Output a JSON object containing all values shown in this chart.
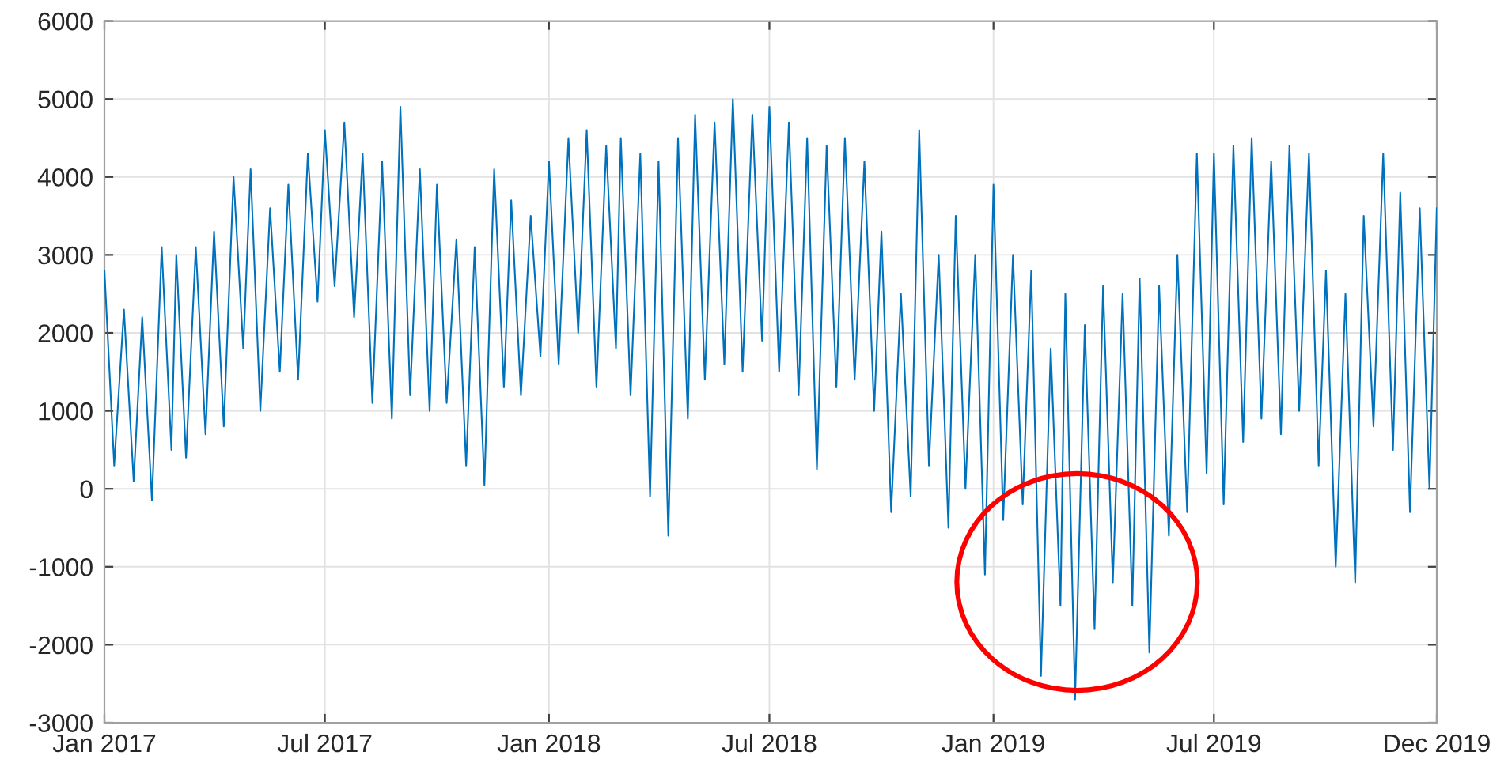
{
  "chart_data": {
    "type": "line",
    "x": [
      "2017-01-01",
      "2017-01-09",
      "2017-01-17",
      "2017-01-25",
      "2017-02-01",
      "2017-02-09",
      "2017-02-17",
      "2017-02-25",
      "2017-03-01",
      "2017-03-09",
      "2017-03-17",
      "2017-03-25",
      "2017-04-01",
      "2017-04-09",
      "2017-04-17",
      "2017-04-25",
      "2017-05-01",
      "2017-05-09",
      "2017-05-17",
      "2017-05-25",
      "2017-06-01",
      "2017-06-09",
      "2017-06-17",
      "2017-06-25",
      "2017-07-01",
      "2017-07-09",
      "2017-07-17",
      "2017-07-25",
      "2017-08-01",
      "2017-08-09",
      "2017-08-17",
      "2017-08-25",
      "2017-09-01",
      "2017-09-09",
      "2017-09-17",
      "2017-09-25",
      "2017-10-01",
      "2017-10-09",
      "2017-10-17",
      "2017-10-25",
      "2017-11-01",
      "2017-11-09",
      "2017-11-17",
      "2017-11-25",
      "2017-12-01",
      "2017-12-09",
      "2017-12-17",
      "2017-12-25",
      "2018-01-01",
      "2018-01-09",
      "2018-01-17",
      "2018-01-25",
      "2018-02-01",
      "2018-02-09",
      "2018-02-17",
      "2018-02-25",
      "2018-03-01",
      "2018-03-09",
      "2018-03-17",
      "2018-03-25",
      "2018-04-01",
      "2018-04-09",
      "2018-04-17",
      "2018-04-25",
      "2018-05-01",
      "2018-05-09",
      "2018-05-17",
      "2018-05-25",
      "2018-06-01",
      "2018-06-09",
      "2018-06-17",
      "2018-06-25",
      "2018-07-01",
      "2018-07-09",
      "2018-07-17",
      "2018-07-25",
      "2018-08-01",
      "2018-08-09",
      "2018-08-17",
      "2018-08-25",
      "2018-09-01",
      "2018-09-09",
      "2018-09-17",
      "2018-09-25",
      "2018-10-01",
      "2018-10-09",
      "2018-10-17",
      "2018-10-25",
      "2018-11-01",
      "2018-11-09",
      "2018-11-17",
      "2018-11-25",
      "2018-12-01",
      "2018-12-09",
      "2018-12-17",
      "2018-12-25",
      "2019-01-01",
      "2019-01-09",
      "2019-01-17",
      "2019-01-25",
      "2019-02-01",
      "2019-02-09",
      "2019-02-17",
      "2019-02-25",
      "2019-03-01",
      "2019-03-09",
      "2019-03-17",
      "2019-03-25",
      "2019-04-01",
      "2019-04-09",
      "2019-04-17",
      "2019-04-25",
      "2019-05-01",
      "2019-05-09",
      "2019-05-17",
      "2019-05-25",
      "2019-06-01",
      "2019-06-09",
      "2019-06-17",
      "2019-06-25",
      "2019-07-01",
      "2019-07-09",
      "2019-07-17",
      "2019-07-25",
      "2019-08-01",
      "2019-08-09",
      "2019-08-17",
      "2019-08-25",
      "2019-09-01",
      "2019-09-09",
      "2019-09-17",
      "2019-09-25",
      "2019-10-01",
      "2019-10-09",
      "2019-10-17",
      "2019-10-25",
      "2019-11-01",
      "2019-11-09",
      "2019-11-17",
      "2019-11-25",
      "2019-12-01",
      "2019-12-09",
      "2019-12-17",
      "2019-12-25",
      "2019-12-31"
    ],
    "series": [
      {
        "color": "#0072bd",
        "values": [
          2800,
          300,
          2300,
          100,
          2200,
          -150,
          3100,
          500,
          3000,
          400,
          3100,
          700,
          3300,
          800,
          4000,
          1800,
          4100,
          1000,
          3600,
          1500,
          3900,
          1400,
          4300,
          2400,
          4600,
          2600,
          4700,
          2200,
          4300,
          1100,
          4200,
          900,
          4900,
          1200,
          4100,
          1000,
          3900,
          1100,
          3200,
          300,
          3100,
          50,
          4100,
          1300,
          3700,
          1200,
          3500,
          1700,
          4200,
          1600,
          4500,
          2000,
          4600,
          1300,
          4400,
          1800,
          4500,
          1200,
          4300,
          -100,
          4200,
          -600,
          4500,
          900,
          4800,
          1400,
          4700,
          1600,
          5000,
          1500,
          4800,
          1900,
          4900,
          1500,
          4700,
          1200,
          4500,
          250,
          4400,
          1300,
          4500,
          1400,
          4200,
          1000,
          3300,
          -300,
          2500,
          -100,
          4600,
          300,
          3000,
          -500,
          3500,
          0,
          3000,
          -1100,
          3900,
          -400,
          3000,
          -200,
          2800,
          -2400,
          1800,
          -1500,
          2500,
          -2700,
          2100,
          -1800,
          2600,
          -1200,
          2500,
          -1500,
          2700,
          -2100,
          2600,
          -600,
          3000,
          -300,
          4300,
          200,
          4300,
          -200,
          4400,
          600,
          4500,
          900,
          4200,
          700,
          4400,
          1000,
          4300,
          300,
          2800,
          -1000,
          2500,
          -1200,
          3500,
          800,
          4300,
          500,
          3800,
          -300,
          3600,
          0,
          3600
        ]
      }
    ],
    "xlim": [
      "2017-01-01",
      "2019-12-31"
    ],
    "xticks": [
      {
        "value": "2017-01-01",
        "label": "Jan 2017"
      },
      {
        "value": "2017-07-01",
        "label": "Jul 2017"
      },
      {
        "value": "2018-01-01",
        "label": "Jan 2018"
      },
      {
        "value": "2018-07-01",
        "label": "Jul 2018"
      },
      {
        "value": "2019-01-01",
        "label": "Jan 2019"
      },
      {
        "value": "2019-07-01",
        "label": "Jul 2019"
      },
      {
        "value": "2019-12-31",
        "label": "Dec 2019"
      }
    ],
    "ylim": [
      -3000,
      6000
    ],
    "yticks": [
      -3000,
      -2000,
      -1000,
      0,
      1000,
      2000,
      3000,
      4000,
      5000,
      6000
    ],
    "grid": true,
    "line_style": "solid"
  }
}
